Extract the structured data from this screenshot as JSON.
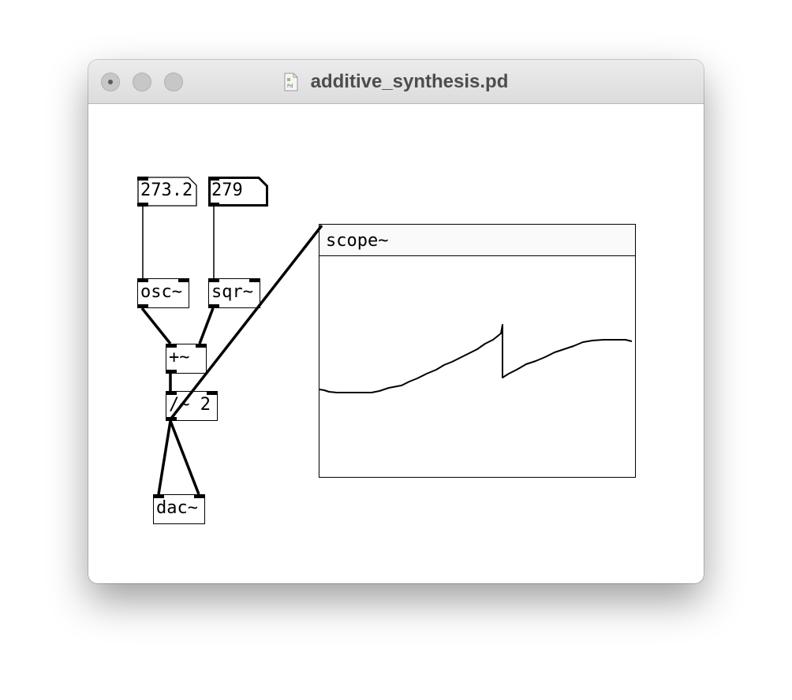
{
  "window": {
    "title": "additive_synthesis.pd",
    "traffic_lights": [
      "close",
      "minimize",
      "zoom"
    ]
  },
  "patch": {
    "number_boxes": [
      {
        "id": "num1",
        "value": "273.2"
      },
      {
        "id": "num2",
        "value": "279"
      }
    ],
    "objects": [
      {
        "id": "osc",
        "label": "osc~"
      },
      {
        "id": "sqr",
        "label": "sqr~"
      },
      {
        "id": "add",
        "label": "+~"
      },
      {
        "id": "div",
        "label": "/~ 2"
      },
      {
        "id": "dac",
        "label": "dac~"
      }
    ],
    "scope": {
      "label": "scope~"
    }
  },
  "colors": {
    "wire": "#000000",
    "titlebar": "#e3e3e3",
    "title_text": "#4d4d4d"
  }
}
